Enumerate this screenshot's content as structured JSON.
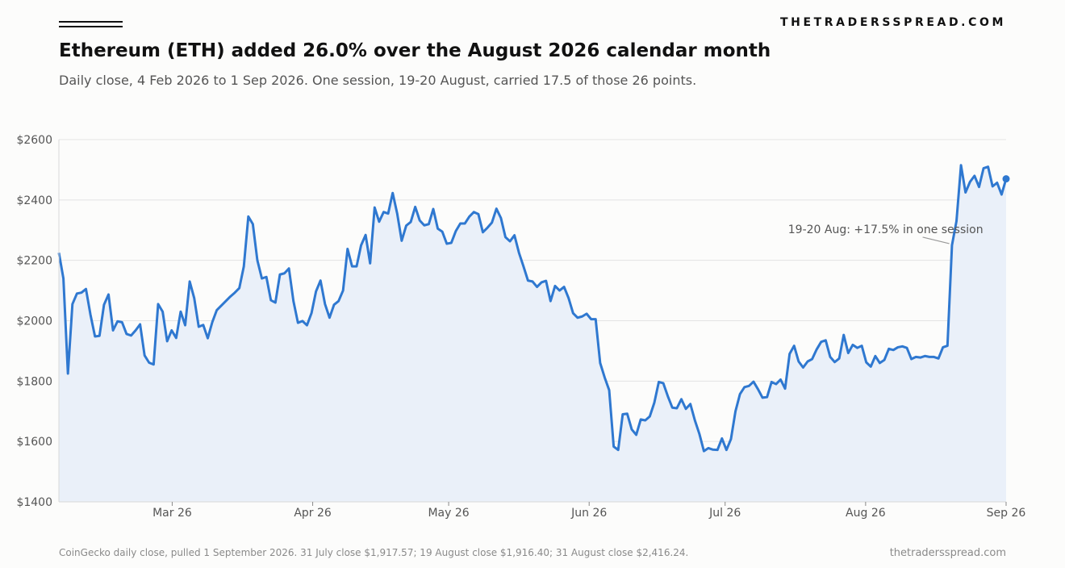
{
  "brand": "THETRADERSSPREAD.COM",
  "title": "Ethereum (ETH) added 26.0% over the August 2026 calendar month",
  "subtitle": "Daily close, 4 Feb 2026 to 1 Sep 2026. One session, 19-20 August, carried 17.5 of those 26 points.",
  "footer": {
    "source": "CoinGecko daily close, pulled 1 September 2026. 31 July close $1,917.57; 19 August close $1,916.40; 31 August close $2,416.24.",
    "site": "thetradersspread.com"
  },
  "colors": {
    "line": "#2f78d0",
    "area": "#eaf0f9",
    "grid": "#e3e3e3",
    "axis": "#333333"
  },
  "chart_data": {
    "type": "line",
    "title": "Ethereum (ETH) added 26.0% over the August 2026 calendar month",
    "xlabel": "",
    "ylabel": "",
    "x_start": "2026-02-04",
    "x_end": "2026-09-01",
    "ylim": [
      1400,
      2600
    ],
    "yticks": [
      1400,
      1600,
      1800,
      2000,
      2200,
      2400,
      2600
    ],
    "ytick_labels": [
      "$1400",
      "$1600",
      "$1800",
      "$2000",
      "$2200",
      "$2400",
      "$2600"
    ],
    "xticks": [
      {
        "date": "2026-03-01",
        "label": "Mar 26"
      },
      {
        "date": "2026-04-01",
        "label": "Apr 26"
      },
      {
        "date": "2026-05-01",
        "label": "May 26"
      },
      {
        "date": "2026-06-01",
        "label": "Jun 26"
      },
      {
        "date": "2026-07-01",
        "label": "Jul 26"
      },
      {
        "date": "2026-08-01",
        "label": "Aug 26"
      },
      {
        "date": "2026-09-01",
        "label": "Sep 26"
      }
    ],
    "grid": true,
    "fill_under": true,
    "end_marker": true,
    "annotation": {
      "text": "19-20 Aug: +17.5% in one session",
      "date": "2026-08-20",
      "value": 2250
    },
    "series": [
      {
        "values": [
          2225,
          2140,
          1825,
          2055,
          2090,
          2093,
          2105,
          2020,
          1948,
          1950,
          2053,
          2087,
          1968,
          1998,
          1995,
          1956,
          1951,
          1968,
          1988,
          1885,
          1861,
          1855,
          2055,
          2030,
          1932,
          1968,
          1943,
          2030,
          1985,
          2130,
          2075,
          1980,
          1986,
          1942,
          1995,
          2035,
          2050,
          2065,
          2080,
          2093,
          2108,
          2180,
          2345,
          2320,
          2200,
          2140,
          2145,
          2068,
          2060,
          2153,
          2157,
          2173,
          2065,
          1993,
          1999,
          1985,
          2025,
          2097,
          2133,
          2055,
          2010,
          2053,
          2065,
          2100,
          2238,
          2180,
          2180,
          2250,
          2284,
          2190,
          2375,
          2328,
          2360,
          2355,
          2423,
          2355,
          2265,
          2315,
          2327,
          2377,
          2332,
          2316,
          2320,
          2370,
          2305,
          2295,
          2255,
          2258,
          2297,
          2322,
          2322,
          2345,
          2360,
          2353,
          2293,
          2308,
          2325,
          2371,
          2340,
          2277,
          2263,
          2283,
          2225,
          2180,
          2133,
          2130,
          2112,
          2127,
          2132,
          2065,
          2115,
          2100,
          2112,
          2075,
          2025,
          2010,
          2014,
          2023,
          2005,
          2005,
          1860,
          1812,
          1770,
          1583,
          1572,
          1690,
          1692,
          1640,
          1622,
          1673,
          1670,
          1683,
          1728,
          1797,
          1793,
          1750,
          1712,
          1710,
          1740,
          1708,
          1724,
          1670,
          1625,
          1568,
          1578,
          1573,
          1572,
          1610,
          1572,
          1608,
          1700,
          1757,
          1780,
          1784,
          1798,
          1773,
          1745,
          1747,
          1797,
          1790,
          1805,
          1775,
          1890,
          1917,
          1865,
          1845,
          1865,
          1873,
          1905,
          1930,
          1935,
          1880,
          1863,
          1875,
          1953,
          1893,
          1920,
          1910,
          1917,
          1862,
          1848,
          1883,
          1860,
          1870,
          1907,
          1903,
          1912,
          1915,
          1910,
          1873,
          1880,
          1878,
          1883,
          1880,
          1880,
          1875,
          1912,
          1917,
          2250,
          2330,
          2515,
          2425,
          2460,
          2480,
          2443,
          2505,
          2510,
          2445,
          2457,
          2418,
          2470
        ]
      }
    ]
  }
}
